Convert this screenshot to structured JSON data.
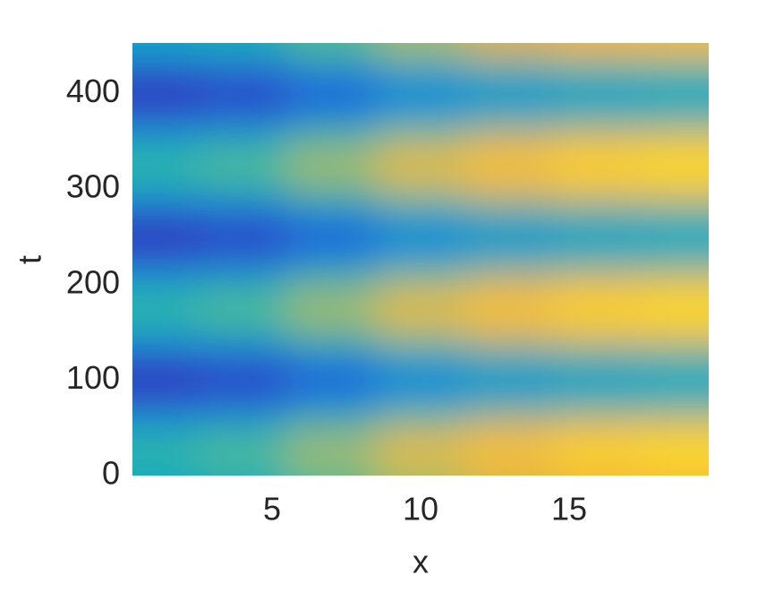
{
  "chart_data": {
    "type": "heatmap",
    "xlabel": "x",
    "ylabel": "t",
    "x": [
      1,
      4,
      7,
      10,
      13,
      16,
      19
    ],
    "y": [
      0,
      25,
      50,
      75,
      100,
      125,
      150,
      175,
      200,
      225,
      250,
      275,
      300,
      325,
      350,
      375,
      400,
      425,
      450
    ],
    "z": [
      [
        0.4,
        0.44,
        0.55,
        0.66,
        0.73,
        0.78,
        0.8
      ],
      [
        0.51,
        0.56,
        0.68,
        0.8,
        0.87,
        0.93,
        0.95
      ],
      [
        0.4,
        0.44,
        0.55,
        0.66,
        0.73,
        0.78,
        0.8
      ],
      [
        0.17,
        0.2,
        0.29,
        0.38,
        0.44,
        0.48,
        0.5
      ],
      [
        0.05,
        0.08,
        0.16,
        0.24,
        0.29,
        0.33,
        0.35
      ],
      [
        0.17,
        0.2,
        0.29,
        0.38,
        0.44,
        0.48,
        0.5
      ],
      [
        0.4,
        0.44,
        0.55,
        0.66,
        0.73,
        0.78,
        0.8
      ],
      [
        0.51,
        0.56,
        0.68,
        0.8,
        0.87,
        0.93,
        0.95
      ],
      [
        0.4,
        0.44,
        0.55,
        0.66,
        0.73,
        0.78,
        0.8
      ],
      [
        0.17,
        0.2,
        0.29,
        0.38,
        0.44,
        0.48,
        0.5
      ],
      [
        0.05,
        0.08,
        0.16,
        0.24,
        0.29,
        0.33,
        0.35
      ],
      [
        0.17,
        0.2,
        0.29,
        0.38,
        0.44,
        0.48,
        0.5
      ],
      [
        0.4,
        0.44,
        0.55,
        0.66,
        0.73,
        0.78,
        0.8
      ],
      [
        0.51,
        0.56,
        0.68,
        0.8,
        0.87,
        0.93,
        0.95
      ],
      [
        0.4,
        0.44,
        0.55,
        0.66,
        0.73,
        0.78,
        0.8
      ],
      [
        0.17,
        0.2,
        0.29,
        0.38,
        0.44,
        0.48,
        0.5
      ],
      [
        0.05,
        0.08,
        0.16,
        0.24,
        0.29,
        0.33,
        0.35
      ],
      [
        0.17,
        0.2,
        0.29,
        0.38,
        0.44,
        0.48,
        0.5
      ],
      [
        0.4,
        0.44,
        0.55,
        0.66,
        0.73,
        0.78,
        0.8
      ]
    ],
    "zlim": [
      0,
      1
    ],
    "colormap": [
      "#352a87",
      "#2f3fe0",
      "#1481d6",
      "#06a4ca",
      "#2eb7a4",
      "#87bf77",
      "#f0b040",
      "#fec832",
      "#f9fb0e"
    ],
    "xlim": [
      0.3,
      19.7
    ],
    "ylim": [
      0,
      453
    ],
    "xticks": [
      5,
      10,
      15
    ],
    "yticks": [
      0,
      100,
      200,
      300,
      400
    ]
  }
}
